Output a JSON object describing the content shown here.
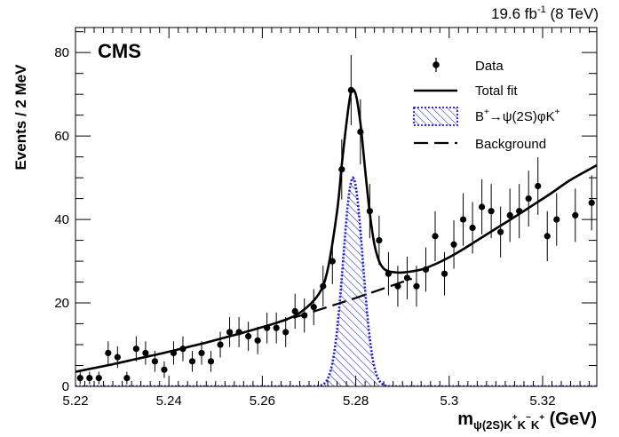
{
  "chart_data": {
    "type": "scatter",
    "lumi_label": {
      "main": "19.6 fb",
      "sup": "-1",
      "rest": " (8 TeV)"
    },
    "experiment_label": "CMS",
    "ylabel": "Events / 2 MeV",
    "xlabel": {
      "main": "m",
      "sub": "ψ(2S)K",
      "sup1": "+",
      "mid": "K",
      "sup2": "−",
      "mid2": "K",
      "sup3": "+",
      "rest": " (GeV)"
    },
    "xlim": [
      5.22,
      5.3316
    ],
    "ylim": [
      0,
      86
    ],
    "x_ticks": [
      {
        "value": 5.22,
        "label": "5.22"
      },
      {
        "value": 5.24,
        "label": "5.24"
      },
      {
        "value": 5.26,
        "label": "5.26"
      },
      {
        "value": 5.28,
        "label": "5.28"
      },
      {
        "value": 5.3,
        "label": "5.3"
      },
      {
        "value": 5.32,
        "label": "5.32"
      }
    ],
    "y_ticks": [
      {
        "value": 0,
        "label": "0"
      },
      {
        "value": 20,
        "label": "20"
      },
      {
        "value": 40,
        "label": "40"
      },
      {
        "value": 60,
        "label": "60"
      },
      {
        "value": 80,
        "label": "80"
      }
    ],
    "legend": {
      "data": "Data",
      "total": "Total fit",
      "signal_pre": "B",
      "signal_sup1": "+",
      "signal_mid": "→ψ(2S)φK",
      "signal_sup2": "+",
      "background": "Background"
    },
    "data_points": [
      {
        "x": 5.221,
        "y": 2,
        "err": 1.5
      },
      {
        "x": 5.223,
        "y": 2,
        "err": 1.5
      },
      {
        "x": 5.225,
        "y": 2,
        "err": 1.5
      },
      {
        "x": 5.227,
        "y": 8,
        "err": 2.8
      },
      {
        "x": 5.229,
        "y": 7,
        "err": 2.6
      },
      {
        "x": 5.231,
        "y": 2,
        "err": 1.5
      },
      {
        "x": 5.233,
        "y": 9,
        "err": 3.0
      },
      {
        "x": 5.235,
        "y": 8,
        "err": 2.8
      },
      {
        "x": 5.237,
        "y": 6,
        "err": 2.5
      },
      {
        "x": 5.239,
        "y": 4,
        "err": 2.0
      },
      {
        "x": 5.241,
        "y": 8,
        "err": 2.8
      },
      {
        "x": 5.243,
        "y": 9,
        "err": 3.0
      },
      {
        "x": 5.245,
        "y": 6,
        "err": 2.5
      },
      {
        "x": 5.247,
        "y": 8,
        "err": 2.8
      },
      {
        "x": 5.249,
        "y": 6,
        "err": 2.5
      },
      {
        "x": 5.251,
        "y": 10,
        "err": 3.1
      },
      {
        "x": 5.253,
        "y": 13,
        "err": 3.6
      },
      {
        "x": 5.255,
        "y": 13,
        "err": 3.6
      },
      {
        "x": 5.257,
        "y": 12,
        "err": 3.5
      },
      {
        "x": 5.259,
        "y": 11,
        "err": 3.3
      },
      {
        "x": 5.261,
        "y": 14,
        "err": 3.7
      },
      {
        "x": 5.263,
        "y": 14,
        "err": 3.7
      },
      {
        "x": 5.265,
        "y": 13,
        "err": 3.6
      },
      {
        "x": 5.267,
        "y": 18,
        "err": 4.2
      },
      {
        "x": 5.269,
        "y": 17,
        "err": 4.1
      },
      {
        "x": 5.271,
        "y": 19,
        "err": 4.3
      },
      {
        "x": 5.273,
        "y": 24,
        "err": 4.9
      },
      {
        "x": 5.275,
        "y": 30,
        "err": 5.5
      },
      {
        "x": 5.277,
        "y": 52,
        "err": 7.2
      },
      {
        "x": 5.279,
        "y": 71,
        "err": 8.4
      },
      {
        "x": 5.281,
        "y": 61,
        "err": 7.8
      },
      {
        "x": 5.283,
        "y": 42,
        "err": 6.5
      },
      {
        "x": 5.285,
        "y": 35,
        "err": 5.9
      },
      {
        "x": 5.287,
        "y": 27,
        "err": 5.2
      },
      {
        "x": 5.289,
        "y": 24,
        "err": 4.9
      },
      {
        "x": 5.291,
        "y": 26,
        "err": 5.1
      },
      {
        "x": 5.293,
        "y": 24,
        "err": 4.9
      },
      {
        "x": 5.295,
        "y": 28,
        "err": 5.3
      },
      {
        "x": 5.297,
        "y": 36,
        "err": 6.0
      },
      {
        "x": 5.299,
        "y": 27,
        "err": 5.2
      },
      {
        "x": 5.301,
        "y": 34,
        "err": 5.8
      },
      {
        "x": 5.303,
        "y": 40,
        "err": 6.3
      },
      {
        "x": 5.305,
        "y": 38,
        "err": 6.2
      },
      {
        "x": 5.307,
        "y": 43,
        "err": 6.6
      },
      {
        "x": 5.309,
        "y": 42,
        "err": 6.5
      },
      {
        "x": 5.311,
        "y": 37,
        "err": 6.1
      },
      {
        "x": 5.313,
        "y": 41,
        "err": 6.4
      },
      {
        "x": 5.315,
        "y": 42,
        "err": 6.5
      },
      {
        "x": 5.317,
        "y": 45,
        "err": 6.7
      },
      {
        "x": 5.319,
        "y": 48,
        "err": 6.9
      },
      {
        "x": 5.321,
        "y": 36,
        "err": 6.0
      },
      {
        "x": 5.323,
        "y": 40,
        "err": 6.3
      },
      {
        "x": 5.327,
        "y": 41,
        "err": 6.4
      },
      {
        "x": 5.3305,
        "y": 44,
        "err": 6.6
      }
    ],
    "total_fit": {
      "x": [
        5.22,
        5.224,
        5.228,
        5.232,
        5.236,
        5.24,
        5.244,
        5.248,
        5.252,
        5.256,
        5.26,
        5.264,
        5.268,
        5.272,
        5.274,
        5.276,
        5.277,
        5.278,
        5.279,
        5.28,
        5.281,
        5.282,
        5.283,
        5.284,
        5.285,
        5.286,
        5.287,
        5.288,
        5.29,
        5.294,
        5.298,
        5.302,
        5.306,
        5.31,
        5.314,
        5.318,
        5.322,
        5.326,
        5.3316
      ],
      "y": [
        3.5,
        4.4,
        5.3,
        6.3,
        7.3,
        8.3,
        9.4,
        10.5,
        11.7,
        12.9,
        14.2,
        15.6,
        17.6,
        22.0,
        28.0,
        42.0,
        53.0,
        63.0,
        70.5,
        70.0,
        63.0,
        52.0,
        41.5,
        34.0,
        30.0,
        28.2,
        27.6,
        27.4,
        27.3,
        28.0,
        29.8,
        32.2,
        35.0,
        37.8,
        40.6,
        43.5,
        46.4,
        49.5,
        53.0
      ]
    },
    "background_fit": {
      "x": [
        5.22,
        5.23,
        5.24,
        5.25,
        5.26,
        5.27,
        5.28,
        5.292
      ],
      "y": [
        3.5,
        5.8,
        8.3,
        11.1,
        14.2,
        17.6,
        21.2,
        25.8
      ]
    },
    "signal": {
      "mean": 5.2794,
      "sigma": 0.0021,
      "amplitude": 50
    },
    "colors": {
      "signal": "#1a1ad8",
      "data": "#000000",
      "fit": "#000000"
    }
  }
}
